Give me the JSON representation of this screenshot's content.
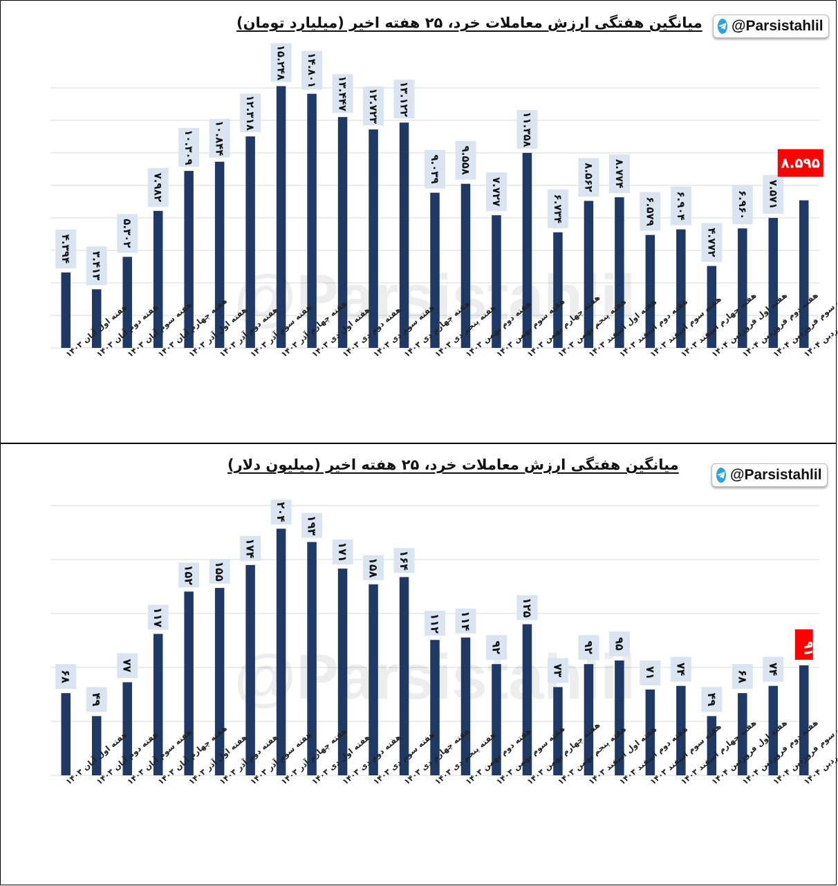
{
  "categories": [
    "هفته اول آبان ۱۴۰۳",
    "هفته دوم آبان ۱۴۰۳",
    "هفته سوم آبان ۱۴۰۳",
    "هفته چهارم آبان ۱۴۰۳",
    "هفته اول آذر ۱۴۰۳",
    "هفته دوم آذر ۱۴۰۳",
    "هفته سوم آذر ۱۴۰۳",
    "هفته چهارم آذر ۱۴۰۳",
    "هفته اول دی ۱۴۰۳",
    "هفته دوم دی ۱۴۰۳",
    "هفته سوم دی ۱۴۰۳",
    "هفته چهارم دی ۱۴۰۳",
    "هفته پنجم دی ۱۴۰۳",
    "هفته دوم بهمن ۱۴۰۳",
    "هفته سوم بهمن ۱۴۰۳",
    "هفته چهارم بهمن ۱۴۰۳",
    "هفته پنجم بهمن ۱۴۰۳",
    "هفته اول اسفند ۱۴۰۳",
    "هفته دوم اسفند ۱۴۰۳",
    "هفته سوم اسفند ۱۴۰۳",
    "هفته چهارم اسفند ۱۴۰۳",
    "هفته اول فروردین ۱۴۰۴",
    "هفته دوم فروردین ۱۴۰۴",
    "هفته سوم فروردین ۱۴۰۴",
    "هفته چهارم فروردین ۱۴۰۴"
  ],
  "watermark": "@Parsistahlil",
  "handle": {
    "text": "@Parsistahlil",
    "icon": "telegram-icon"
  },
  "colors": {
    "bar": "#1f3864",
    "highlight": "#ff0000",
    "label_bg": "#dbe5f1",
    "grid": "#d9d9d9"
  },
  "chart_data": [
    {
      "type": "bar",
      "title": "میانگین هفتگی ارزش معاملات خرد، ۲۵ هفته اخیر (میلیارد تومان)",
      "values": [
        4.394,
        3.413,
        5.302,
        7.982,
        10.309,
        10.844,
        12.318,
        15.248,
        14.801,
        13.447,
        12.723,
        13.122,
        9.039,
        9.558,
        7.727,
        11.358,
        6.734,
        8.562,
        8.774,
        6.579,
        6.904,
        4.772,
        6.96,
        7.571,
        8.595
      ],
      "value_labels": [
        "۴.۳۹۴",
        "۳.۴۱۳",
        "۵.۳۰۲",
        "۷.۹۸۲",
        "۱۰.۳۰۹",
        "۱۰.۸۴۴",
        "۱۲.۳۱۸",
        "۱۵.۲۴۸",
        "۱۴.۸۰۱",
        "۱۳.۴۴۷",
        "۱۲.۷۲۳",
        "۱۳.۱۲۲",
        "۹.۰۳۹",
        "۹.۵۵۸",
        "۷.۷۲۷",
        "۱۱.۳۵۸",
        "۶.۷۳۴",
        "۸.۵۶۲",
        "۸.۷۷۴",
        "۶.۵۷۹",
        "۶.۹۰۴",
        "۴.۷۷۲",
        "۶.۹۶۰",
        "۷.۵۷۱",
        "۸.۵۹۵"
      ],
      "ylim": [
        0,
        17
      ],
      "grid": true,
      "highlight_last": true
    },
    {
      "type": "bar",
      "title": "میانگین هفتگی ارزش معاملات خرد، ۲۵ هفته اخیر (میلیون دلار)",
      "values": [
        68,
        49,
        77,
        117,
        152,
        155,
        174,
        204,
        193,
        171,
        158,
        164,
        112,
        114,
        92,
        125,
        73,
        92,
        95,
        71,
        74,
        49,
        68,
        74,
        91
      ],
      "value_labels": [
        "۶۸",
        "۴۹",
        "۷۷",
        "۱۱۷",
        "۱۵۲",
        "۱۵۵",
        "۱۷۴",
        "۲۰۴",
        "۱۹۳",
        "۱۷۱",
        "۱۵۸",
        "۱۶۴",
        "۱۱۲",
        "۱۱۴",
        "۹۲",
        "۱۲۵",
        "۷۳",
        "۹۲",
        "۹۵",
        "۷۱",
        "۷۴",
        "۴۹",
        "۶۸",
        "۷۴",
        "۹۱"
      ],
      "ylim": [
        0,
        250
      ],
      "grid": true,
      "highlight_last": true
    }
  ]
}
